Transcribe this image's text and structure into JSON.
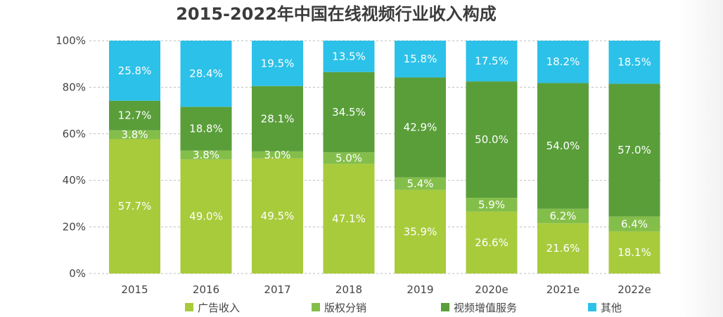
{
  "chart_data": {
    "type": "bar",
    "stacked": true,
    "normalized": true,
    "title": "2015-2022年中国在线视频行业收入构成",
    "categories": [
      "2015",
      "2016",
      "2017",
      "2018",
      "2019",
      "2020e",
      "2021e",
      "2022e"
    ],
    "y_ticks": [
      "0%",
      "20%",
      "40%",
      "60%",
      "80%",
      "100%"
    ],
    "ylim": [
      0,
      100
    ],
    "grid": true,
    "legend_position": "bottom",
    "series": [
      {
        "name": "广告收入",
        "color": "#a8cb3c",
        "values": [
          57.7,
          49.0,
          49.5,
          47.1,
          35.9,
          26.6,
          21.6,
          18.1
        ],
        "labels": [
          "57.7%",
          "49.0%",
          "49.5%",
          "47.1%",
          "35.9%",
          "26.6%",
          "21.6%",
          "18.1%"
        ]
      },
      {
        "name": "版权分销",
        "color": "#84be4a",
        "values": [
          3.8,
          3.8,
          3.0,
          5.0,
          5.4,
          5.9,
          6.2,
          6.4
        ],
        "labels": [
          "3.8%",
          "3.8%",
          "3.0%",
          "5.0%",
          "5.4%",
          "5.9%",
          "6.2%",
          "6.4%"
        ]
      },
      {
        "name": "视频增值服务",
        "color": "#5a9e3a",
        "values": [
          12.7,
          18.8,
          28.1,
          34.5,
          42.9,
          50.0,
          54.0,
          57.0
        ],
        "labels": [
          "12.7%",
          "18.8%",
          "28.1%",
          "34.5%",
          "42.9%",
          "50.0%",
          "54.0%",
          "57.0%"
        ]
      },
      {
        "name": "其他",
        "color": "#2cc1e8",
        "values": [
          25.8,
          28.4,
          19.5,
          13.5,
          15.8,
          17.5,
          18.2,
          18.5
        ],
        "labels": [
          "25.8%",
          "28.4%",
          "19.5%",
          "13.5%",
          "15.8%",
          "17.5%",
          "18.2%",
          "18.5%"
        ]
      }
    ]
  }
}
